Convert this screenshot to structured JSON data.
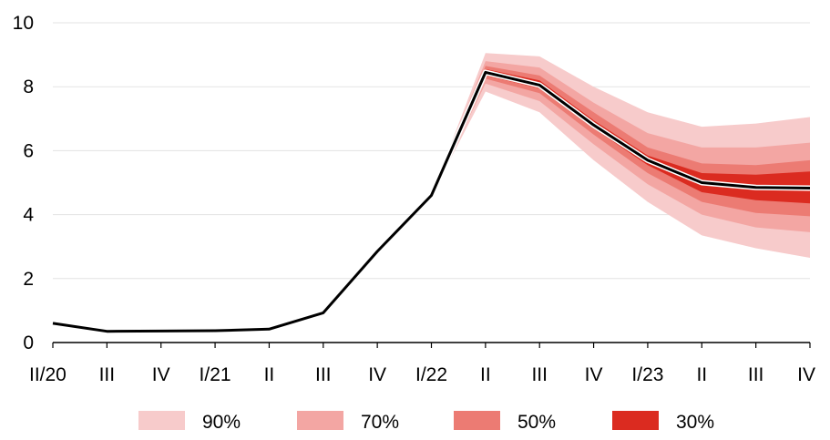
{
  "chart_data": {
    "type": "area",
    "categories": [
      "II/20",
      "III",
      "IV",
      "I/21",
      "II",
      "III",
      "IV",
      "I/22",
      "II",
      "III",
      "IV",
      "I/23",
      "II",
      "III",
      "IV"
    ],
    "ylim": [
      0,
      10
    ],
    "yticks": [
      "0",
      "2",
      "4",
      "6",
      "8",
      "10"
    ],
    "grid": true,
    "series": [
      {
        "type": "line",
        "values": [
          0.6,
          0.35,
          0.36,
          0.37,
          0.42,
          0.93,
          2.85,
          4.6,
          8.45,
          8.05,
          6.8,
          5.7,
          5.0,
          4.85,
          4.83
        ],
        "color": "#000000"
      }
    ],
    "fan": {
      "start_index": 7,
      "bands": [
        {
          "name": "90%",
          "color": "#f7cbcb",
          "lower": [
            4.6,
            7.85,
            7.2,
            5.7,
            4.4,
            3.35,
            2.95,
            2.65
          ],
          "upper": [
            4.6,
            9.05,
            8.95,
            8.0,
            7.2,
            6.75,
            6.85,
            7.05
          ]
        },
        {
          "name": "70%",
          "color": "#f3a6a3",
          "lower": [
            4.6,
            8.1,
            7.55,
            6.2,
            4.95,
            4.0,
            3.6,
            3.45
          ],
          "upper": [
            4.6,
            8.8,
            8.6,
            7.5,
            6.55,
            6.1,
            6.1,
            6.25
          ]
        },
        {
          "name": "50%",
          "color": "#ec7b73",
          "lower": [
            4.6,
            8.25,
            7.8,
            6.5,
            5.3,
            4.4,
            4.05,
            3.95
          ],
          "upper": [
            4.6,
            8.65,
            8.35,
            7.2,
            6.1,
            5.6,
            5.55,
            5.7
          ]
        },
        {
          "name": "30%",
          "color": "#db2b20",
          "lower": [
            4.6,
            8.35,
            7.95,
            6.7,
            5.55,
            4.7,
            4.45,
            4.35
          ],
          "upper": [
            4.6,
            8.55,
            8.2,
            6.95,
            5.85,
            5.3,
            5.25,
            5.35
          ]
        }
      ]
    },
    "legend": {
      "placement": "bottom",
      "items": [
        {
          "label": "90%",
          "color": "#f7cbcb"
        },
        {
          "label": "70%",
          "color": "#f3a6a3"
        },
        {
          "label": "50%",
          "color": "#ec7b73"
        },
        {
          "label": "30%",
          "color": "#db2b20"
        }
      ]
    }
  }
}
